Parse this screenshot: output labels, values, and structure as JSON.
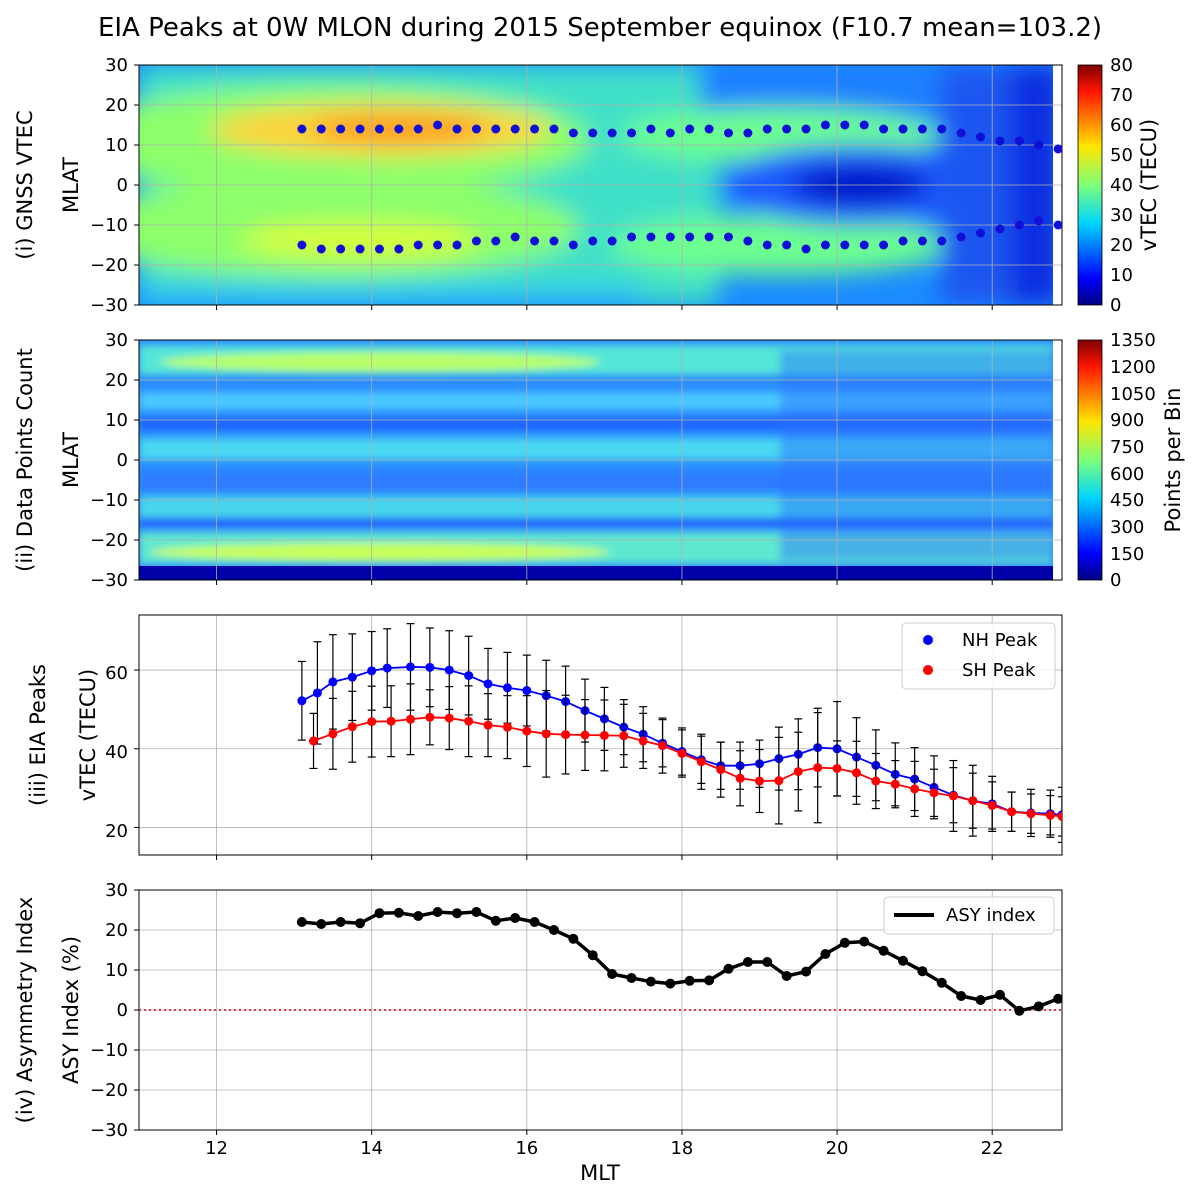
{
  "title": "EIA Peaks at 0W MLON during 2015 September equinox (F10.7 mean=103.2)",
  "xlabel": "MLT",
  "x_ticks": [
    "12",
    "14",
    "16",
    "18",
    "20",
    "22"
  ],
  "panels": {
    "vtec": {
      "ylabel_outer": "(i) GNSS VTEC",
      "ylabel_inner": "MLAT",
      "y_ticks": [
        "30",
        "20",
        "10",
        "0",
        "−10",
        "−20",
        "−30"
      ],
      "colorbar_label": "vTEC (TECU)",
      "colorbar_ticks": [
        "80",
        "70",
        "60",
        "50",
        "40",
        "30",
        "20",
        "10",
        "0"
      ]
    },
    "count": {
      "ylabel_outer": "(ii) Data Points Count",
      "ylabel_inner": "MLAT",
      "y_ticks": [
        "30",
        "20",
        "10",
        "0",
        "−10",
        "−20",
        "−30"
      ],
      "colorbar_label": "Points per Bin",
      "colorbar_ticks": [
        "1350",
        "1200",
        "1050",
        "900",
        "750",
        "600",
        "450",
        "300",
        "150",
        "0"
      ]
    },
    "peaks": {
      "ylabel_outer": "(iii) EIA Peaks",
      "ylabel_inner": "vTEC (TECU)",
      "y_ticks": [
        "60",
        "40",
        "20"
      ],
      "legend": [
        "NH Peak",
        "SH Peak"
      ]
    },
    "asy": {
      "ylabel_outer": "(iv) Asymmetry Index",
      "ylabel_inner": "ASY Index (%)",
      "y_ticks": [
        "30",
        "20",
        "10",
        "0",
        "−10",
        "−20",
        "−30"
      ],
      "legend": [
        "ASY index"
      ]
    }
  },
  "colors": {
    "nh": "#0000ff",
    "sh": "#ff0000",
    "asy": "#000000",
    "zero_line": "#cc0000"
  },
  "chart_data": [
    {
      "type": "heatmap",
      "title": "",
      "xlabel": "",
      "ylabel": "MLAT",
      "xlim": [
        11,
        22.9
      ],
      "ylim": [
        -30,
        30
      ],
      "colorbar": {
        "label": "vTEC (TECU)",
        "range": [
          0,
          80
        ],
        "colormap": "jet"
      },
      "north_peaks": {
        "x": [
          13.1,
          13.35,
          13.6,
          13.85,
          14.1,
          14.35,
          14.6,
          14.85,
          15.1,
          15.35,
          15.6,
          15.85,
          16.1,
          16.35,
          16.6,
          16.85,
          17.1,
          17.35,
          17.6,
          17.85,
          18.1,
          18.35,
          18.6,
          18.85,
          19.1,
          19.35,
          19.6,
          19.85,
          20.1,
          20.35,
          20.6,
          20.85,
          21.1,
          21.35,
          21.6,
          21.85,
          22.1,
          22.35,
          22.6,
          22.85
        ],
        "y": [
          14,
          14,
          14,
          14,
          14,
          14,
          14,
          15,
          14,
          14,
          14,
          14,
          14,
          14,
          13,
          13,
          13,
          13,
          14,
          13,
          14,
          14,
          13,
          13,
          14,
          14,
          14,
          15,
          15,
          15,
          14,
          14,
          14,
          14,
          13,
          12,
          11,
          11,
          10,
          9
        ]
      },
      "south_peaks": {
        "x": [
          13.1,
          13.35,
          13.6,
          13.85,
          14.1,
          14.35,
          14.6,
          14.85,
          15.1,
          15.35,
          15.6,
          15.85,
          16.1,
          16.35,
          16.6,
          16.85,
          17.1,
          17.35,
          17.6,
          17.85,
          18.1,
          18.35,
          18.6,
          18.85,
          19.1,
          19.35,
          19.6,
          19.85,
          20.1,
          20.35,
          20.6,
          20.85,
          21.1,
          21.35,
          21.6,
          21.85,
          22.1,
          22.35,
          22.6,
          22.85
        ],
        "y": [
          -15,
          -16,
          -16,
          -16,
          -16,
          -16,
          -15,
          -15,
          -15,
          -14,
          -14,
          -13,
          -14,
          -14,
          -15,
          -14,
          -14,
          -13,
          -13,
          -13,
          -13,
          -13,
          -13,
          -14,
          -15,
          -15,
          -16,
          -15,
          -15,
          -15,
          -15,
          -14,
          -14,
          -14,
          -13,
          -12,
          -11,
          -10,
          -9,
          -10
        ]
      }
    },
    {
      "type": "heatmap",
      "title": "",
      "xlabel": "",
      "ylabel": "MLAT",
      "xlim": [
        11,
        22.9
      ],
      "ylim": [
        -30,
        30
      ],
      "colorbar": {
        "label": "Points per Bin",
        "range": [
          0,
          1350
        ],
        "colormap": "jet"
      }
    },
    {
      "type": "line",
      "title": "",
      "xlabel": "",
      "ylabel": "vTEC (TECU)",
      "xlim": [
        11,
        22.9
      ],
      "ylim": [
        13,
        74
      ],
      "grid": true,
      "legend_position": "top-right",
      "series": [
        {
          "name": "NH Peak",
          "x": [
            13.1,
            13.3,
            13.5,
            13.75,
            14.0,
            14.2,
            14.5,
            14.75,
            15.0,
            15.25,
            15.5,
            15.75,
            16.0,
            16.25,
            16.5,
            16.75,
            17.0,
            17.25,
            17.5,
            17.75,
            18.0,
            18.25,
            18.5,
            18.75,
            19.0,
            19.25,
            19.5,
            19.75,
            20.0,
            20.25,
            20.5,
            20.75,
            21.0,
            21.25,
            21.5,
            21.75,
            22.0,
            22.25,
            22.5,
            22.75,
            22.9
          ],
          "y": [
            52.2,
            54.2,
            57.0,
            58.2,
            59.8,
            60.5,
            60.8,
            60.7,
            60.0,
            58.6,
            56.5,
            55.5,
            54.8,
            53.5,
            52.0,
            49.7,
            47.6,
            45.5,
            43.7,
            41.4,
            39.3,
            37.2,
            35.7,
            35.7,
            36.2,
            37.5,
            38.6,
            40.3,
            40.0,
            37.9,
            35.8,
            33.5,
            32.3,
            30.2,
            28.2,
            26.8,
            26.0,
            24.0,
            23.7,
            23.5,
            23.2
          ],
          "err": [
            10,
            13,
            12,
            11,
            10,
            10,
            11,
            10,
            10,
            10,
            9,
            9,
            9,
            9,
            9,
            8,
            8,
            7,
            7,
            6,
            6,
            6,
            6,
            6,
            6,
            8,
            9,
            10,
            12,
            10,
            9,
            8,
            8,
            8,
            7,
            7,
            7,
            5,
            6,
            6,
            7
          ]
        },
        {
          "name": "SH Peak",
          "x": [
            13.25,
            13.5,
            13.75,
            14.0,
            14.25,
            14.5,
            14.75,
            15.0,
            15.25,
            15.5,
            15.75,
            16.0,
            16.25,
            16.5,
            16.75,
            17.0,
            17.25,
            17.5,
            17.75,
            18.0,
            18.25,
            18.5,
            18.75,
            19.0,
            19.25,
            19.5,
            19.75,
            20.0,
            20.25,
            20.5,
            20.75,
            21.0,
            21.25,
            21.5,
            21.75,
            22.0,
            22.25,
            22.5,
            22.75,
            22.9
          ],
          "y": [
            42.0,
            43.8,
            45.6,
            46.9,
            47.0,
            47.5,
            48.0,
            47.8,
            47.0,
            46.0,
            45.5,
            44.5,
            43.8,
            43.6,
            43.5,
            43.4,
            43.3,
            42.0,
            40.8,
            38.8,
            36.7,
            34.7,
            32.5,
            31.8,
            31.9,
            34.2,
            35.2,
            35.0,
            33.9,
            31.8,
            31.0,
            29.8,
            28.8,
            28.0,
            26.8,
            25.6,
            24.0,
            23.5,
            23.1,
            22.8
          ],
          "err": [
            7,
            9,
            9,
            9,
            9,
            9,
            7,
            8,
            9,
            8,
            8,
            9,
            11,
            10,
            9,
            9,
            8,
            7,
            7,
            6,
            7,
            7,
            7,
            8,
            11,
            10,
            14,
            7,
            8,
            7,
            6,
            7,
            6,
            9,
            9,
            6,
            5,
            5,
            5,
            5
          ]
        }
      ]
    },
    {
      "type": "line",
      "title": "",
      "xlabel": "MLT",
      "ylabel": "ASY Index (%)",
      "xlim": [
        11,
        22.9
      ],
      "ylim": [
        -30,
        30
      ],
      "grid": true,
      "legend_position": "top-right",
      "reference_line": {
        "y": 0,
        "style": "dotted red"
      },
      "series": [
        {
          "name": "ASY index",
          "x": [
            13.1,
            13.35,
            13.6,
            13.85,
            14.1,
            14.35,
            14.6,
            14.85,
            15.1,
            15.35,
            15.6,
            15.85,
            16.1,
            16.35,
            16.6,
            16.85,
            17.1,
            17.35,
            17.6,
            17.85,
            18.1,
            18.35,
            18.6,
            18.85,
            19.1,
            19.35,
            19.6,
            19.85,
            20.1,
            20.35,
            20.6,
            20.85,
            21.1,
            21.35,
            21.6,
            21.85,
            22.1,
            22.35,
            22.6,
            22.85
          ],
          "y": [
            22,
            21.5,
            22,
            21.7,
            24.2,
            24.3,
            23.5,
            24.5,
            24.2,
            24.5,
            22.3,
            23,
            22,
            20,
            17.8,
            13.7,
            9,
            8,
            7.1,
            6.6,
            7.3,
            7.4,
            10.3,
            12,
            12,
            8.5,
            9.6,
            14,
            16.8,
            17.1,
            14.8,
            12.3,
            9.7,
            6.8,
            3.5,
            2.5,
            3.8,
            -0.2,
            0.9,
            2.8
          ]
        }
      ]
    }
  ]
}
